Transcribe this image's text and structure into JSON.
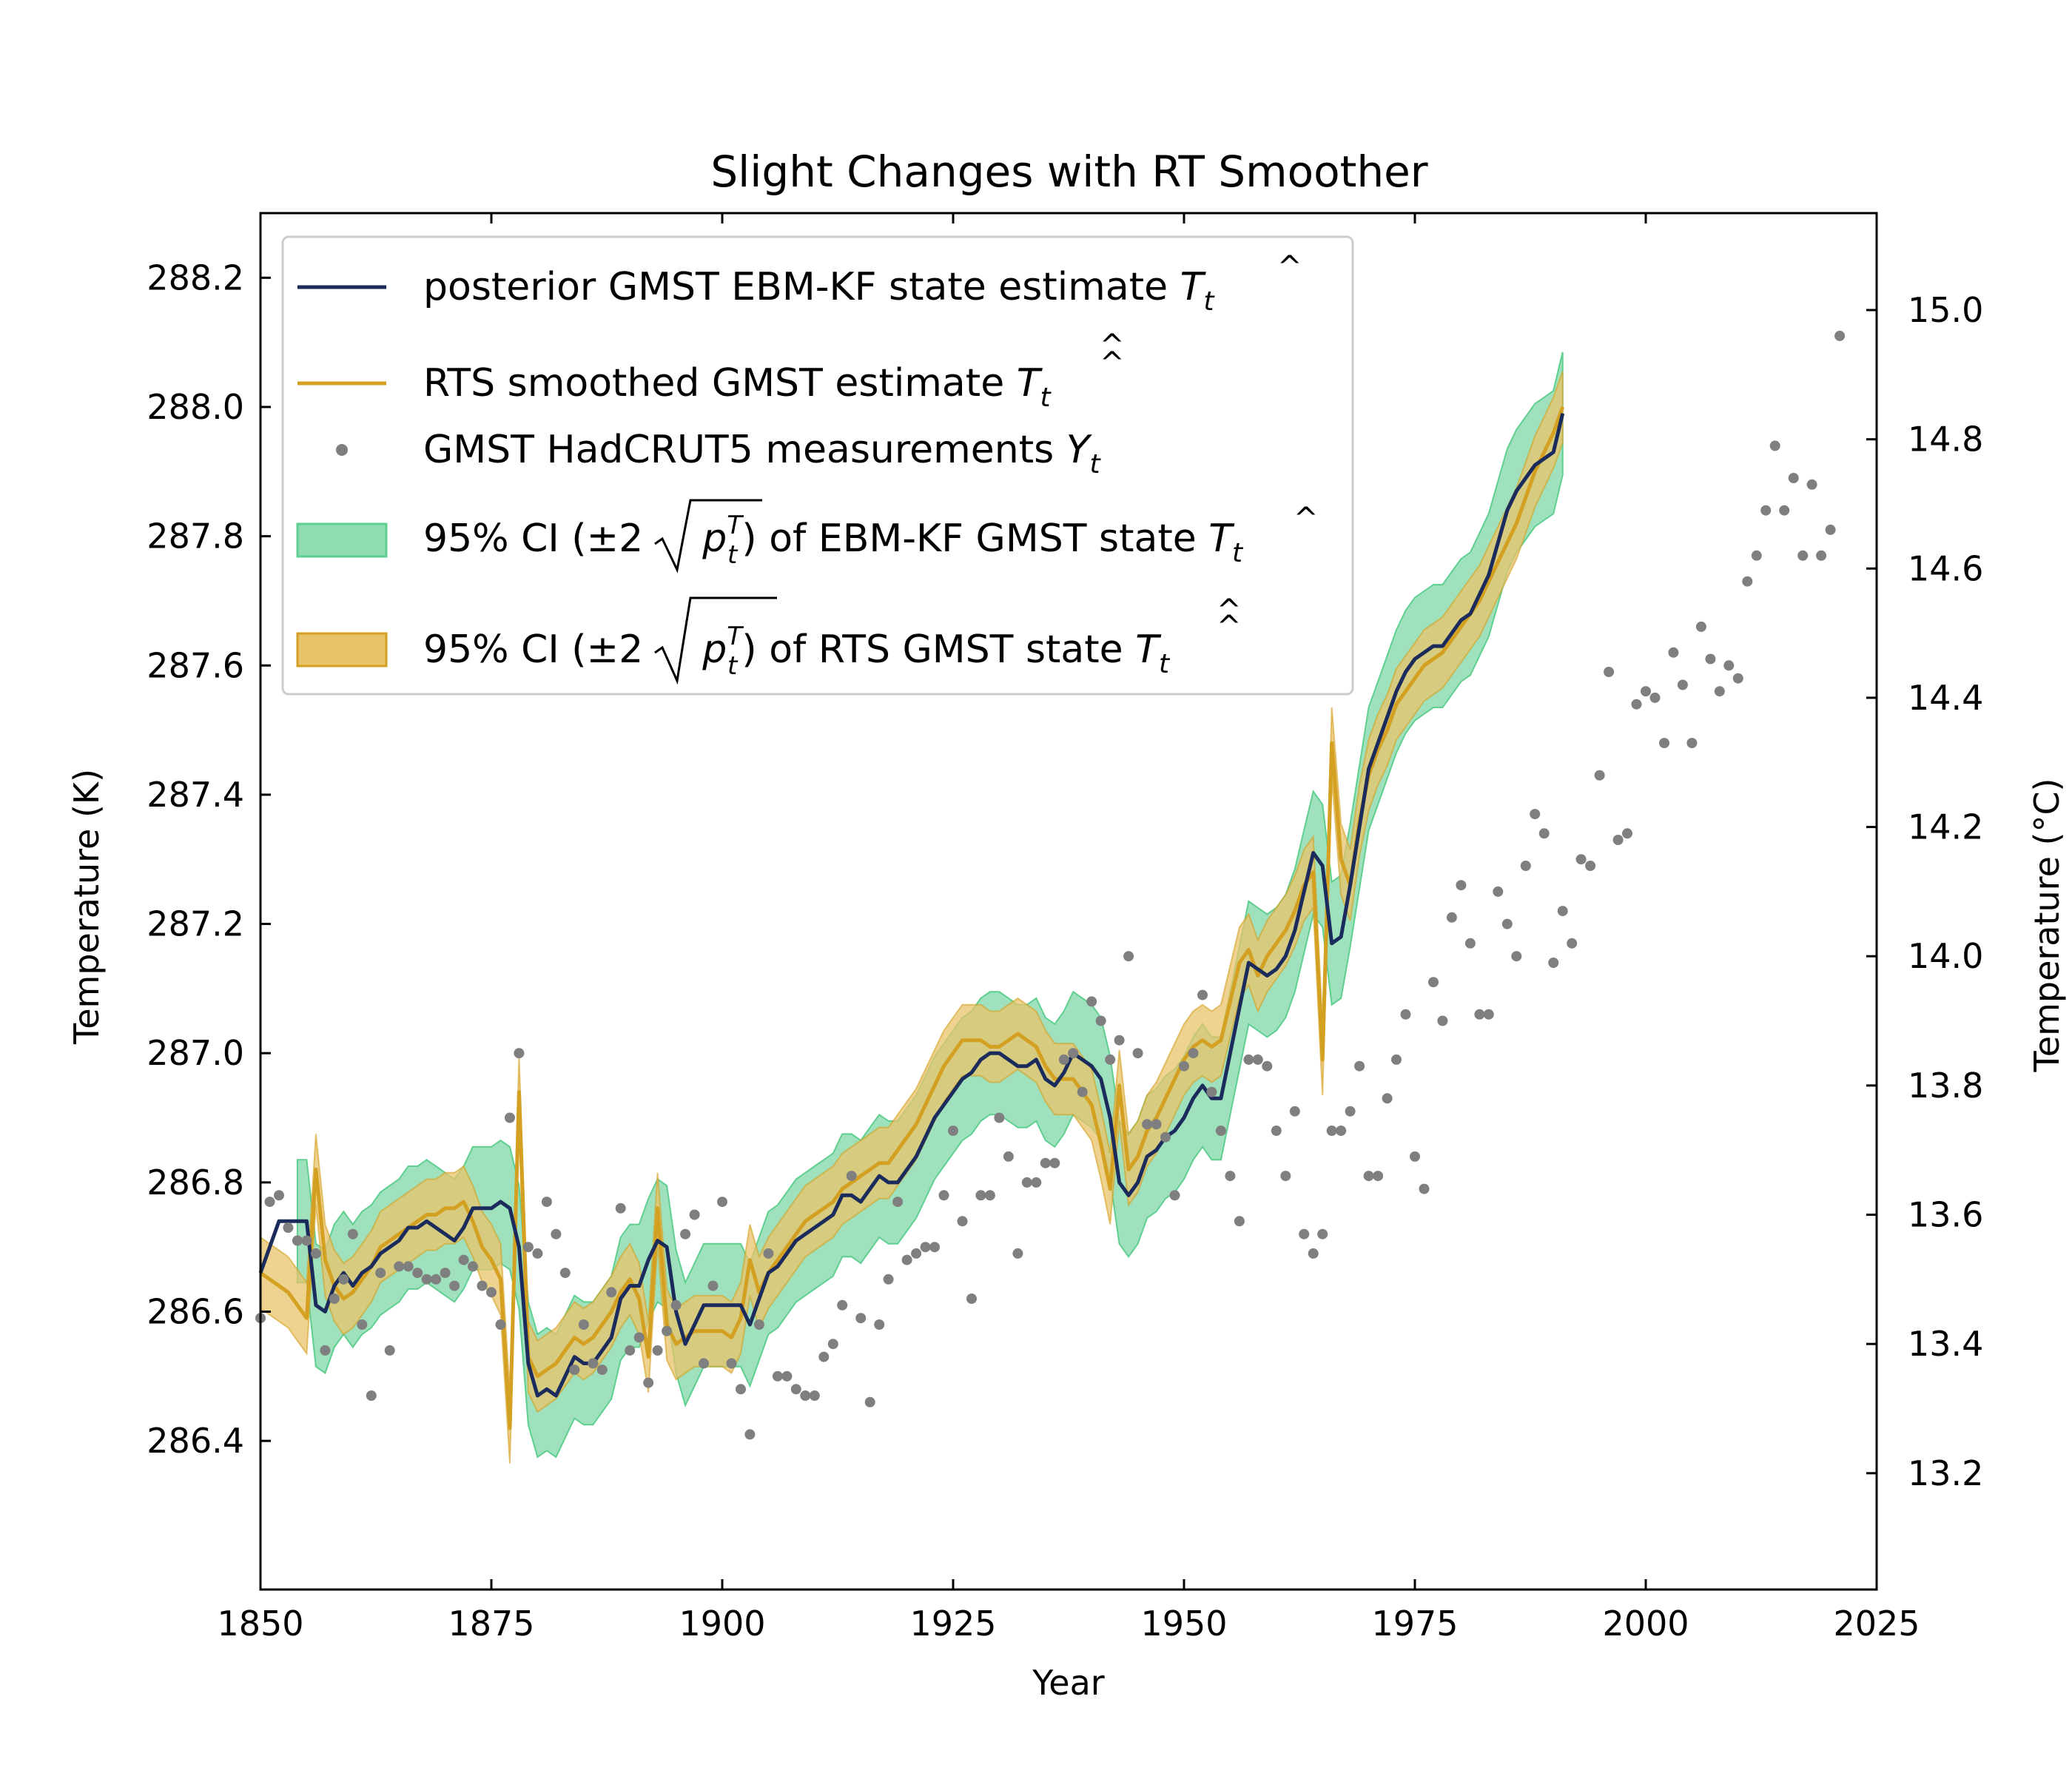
{
  "chart_data": {
    "type": "line",
    "title": "Slight Changes with RT Smoother",
    "xlabel": "Year",
    "ylabel_left": "Temperature (K)",
    "ylabel_right": "Temperature (°C)",
    "xlim": [
      1850,
      2025
    ],
    "ylim_left": [
      286.17,
      288.3
    ],
    "ylim_right": [
      13.02,
      15.15
    ],
    "x_ticks": [
      "1850",
      "1875",
      "1900",
      "1925",
      "1950",
      "1975",
      "2000",
      "2025"
    ],
    "y_ticks_left": [
      "286.4",
      "286.6",
      "286.8",
      "287.0",
      "287.2",
      "287.4",
      "287.6",
      "287.8",
      "288.0",
      "288.2"
    ],
    "y_ticks_right": [
      "13.2",
      "13.4",
      "13.6",
      "13.8",
      "14.0",
      "14.2",
      "14.4",
      "14.6",
      "14.8",
      "15.0"
    ],
    "legend_position": "upper-left",
    "legend": {
      "kf": {
        "pre": "posterior GMST EBM-KF state estimate ",
        "sym": "T",
        "sub": "t"
      },
      "rts": {
        "pre": "RTS smoothed GMST estimate ",
        "sym": "T",
        "sub": "t"
      },
      "meas": {
        "pre": "GMST HadCRUT5 measurements ",
        "sym": "Y",
        "sub": "t"
      },
      "ci_kf": {
        "pre": "95% CI (±2",
        "sym": "p",
        "mid": ") of EBM-KF GMST state ",
        "sym2": "T",
        "sub": "t",
        "sup": "T"
      },
      "ci_rts": {
        "pre": "95% CI (±2",
        "sym": "p",
        "mid": ") of RTS GMST state ",
        "sym2": "T",
        "sub": "t",
        "sup": "T"
      }
    },
    "colors": {
      "kf_line": "#1a2b5c",
      "rts_line": "#d4a021",
      "meas": "#7f7f7f",
      "ci_kf_fill": "#8edcb0",
      "ci_kf_edge": "#5fcf8f",
      "ci_rts_fill": "#e8c36a",
      "ci_rts_edge": "#d4a021"
    },
    "years_start": 1850,
    "measurements": [
      286.59,
      286.77,
      286.78,
      286.73,
      286.71,
      286.71,
      286.69,
      286.54,
      286.62,
      286.65,
      286.72,
      286.58,
      286.47,
      286.66,
      286.54,
      286.67,
      286.67,
      286.66,
      286.65,
      286.65,
      286.66,
      286.64,
      286.68,
      286.67,
      286.64,
      286.63,
      286.58,
      286.9,
      287.0,
      286.7,
      286.69,
      286.77,
      286.72,
      286.66,
      286.51,
      286.58,
      286.52,
      286.51,
      286.63,
      286.76,
      286.54,
      286.56,
      286.49,
      286.54,
      286.57,
      286.61,
      286.72,
      286.75,
      286.52,
      286.64,
      286.77,
      286.52,
      286.48,
      286.41,
      286.58,
      286.69,
      286.5,
      286.5,
      286.48,
      286.47,
      286.47,
      286.53,
      286.55,
      286.61,
      286.81,
      286.59,
      286.46,
      286.58,
      286.65,
      286.77,
      286.68,
      286.69,
      286.7,
      286.7,
      286.78,
      286.88,
      286.74,
      286.62,
      286.78,
      286.78,
      286.9,
      286.84,
      286.69,
      286.8,
      286.8,
      286.83,
      286.83,
      286.99,
      287.0,
      286.94,
      287.08,
      287.05,
      286.99,
      287.02,
      287.15,
      287.0,
      286.89,
      286.89,
      286.87,
      286.78,
      286.98,
      287.0,
      287.09,
      286.94,
      286.88,
      286.81,
      286.74,
      286.99,
      286.99,
      286.98,
      286.88,
      286.81,
      286.91,
      286.72,
      286.69,
      286.72,
      286.88,
      286.88,
      286.91,
      286.98,
      286.81,
      286.81,
      286.93,
      286.99,
      287.06,
      286.84,
      286.79,
      287.11,
      287.05,
      287.21,
      287.26,
      287.17,
      287.06,
      287.06,
      287.25,
      287.2,
      287.15,
      287.29,
      287.37,
      287.34,
      287.14,
      287.22,
      287.17,
      287.3,
      287.29,
      287.43,
      287.59,
      287.33,
      287.34,
      287.54,
      287.56,
      287.55,
      287.48,
      287.62,
      287.57,
      287.48,
      287.66,
      287.61,
      287.56,
      287.6,
      287.58,
      287.73,
      287.77,
      287.84,
      287.94,
      287.84,
      287.89,
      287.77,
      287.88,
      287.77,
      287.81,
      288.11
    ],
    "kf": [
      286.66,
      286.7,
      286.74,
      286.74,
      286.74,
      286.74,
      286.61,
      286.6,
      286.64,
      286.66,
      286.64,
      286.66,
      286.67,
      286.69,
      286.7,
      286.71,
      286.73,
      286.73,
      286.74,
      286.73,
      286.72,
      286.71,
      286.73,
      286.76,
      286.76,
      286.76,
      286.77,
      286.76,
      286.7,
      286.52,
      286.47,
      286.48,
      286.47,
      286.5,
      286.53,
      286.52,
      286.52,
      286.54,
      286.56,
      286.62,
      286.64,
      286.64,
      286.68,
      286.71,
      286.7,
      286.6,
      286.55,
      286.58,
      286.61,
      286.61,
      286.61,
      286.61,
      286.61,
      286.58,
      286.62,
      286.66,
      286.67,
      286.69,
      286.71,
      286.72,
      286.73,
      286.74,
      286.75,
      286.78,
      286.78,
      286.77,
      286.79,
      286.81,
      286.8,
      286.8,
      286.82,
      286.84,
      286.87,
      286.9,
      286.92,
      286.94,
      286.96,
      286.97,
      286.99,
      287.0,
      287.0,
      286.99,
      286.98,
      286.98,
      286.99,
      286.96,
      286.95,
      286.97,
      287.0,
      286.99,
      286.98,
      286.96,
      286.9,
      286.8,
      286.78,
      286.8,
      286.84,
      286.85,
      286.87,
      286.88,
      286.9,
      286.93,
      286.95,
      286.93,
      286.93,
      287.0,
      287.07,
      287.14,
      287.13,
      287.12,
      287.13,
      287.15,
      287.19,
      287.25,
      287.31,
      287.29,
      287.17,
      287.18,
      287.26,
      287.35,
      287.44,
      287.48,
      287.52,
      287.56,
      287.59,
      287.61,
      287.62,
      287.63,
      287.63,
      287.65,
      287.67,
      287.68,
      287.71,
      287.74,
      287.79,
      287.84,
      287.87,
      287.89,
      287.91,
      287.92,
      287.93,
      287.99
    ],
    "kf_halfwidth": 0.095,
    "kf_ci_start": 1854,
    "rts_start": 1850,
    "rts": [
      286.66,
      286.65,
      286.64,
      286.63,
      286.61,
      286.59,
      286.82,
      286.68,
      286.64,
      286.62,
      286.63,
      286.65,
      286.67,
      286.7,
      286.71,
      286.72,
      286.73,
      286.74,
      286.75,
      286.75,
      286.76,
      286.76,
      286.77,
      286.74,
      286.7,
      286.68,
      286.65,
      286.42,
      286.94,
      286.53,
      286.5,
      286.51,
      286.52,
      286.54,
      286.56,
      286.55,
      286.56,
      286.58,
      286.6,
      286.63,
      286.65,
      286.62,
      286.53,
      286.76,
      286.58,
      286.55,
      286.56,
      286.57,
      286.57,
      286.57,
      286.57,
      286.56,
      286.59,
      286.68,
      286.63,
      286.66,
      286.68,
      286.7,
      286.72,
      286.74,
      286.75,
      286.76,
      286.77,
      286.79,
      286.8,
      286.81,
      286.82,
      286.83,
      286.83,
      286.85,
      286.87,
      286.89,
      286.92,
      286.95,
      286.98,
      287.0,
      287.02,
      287.02,
      287.02,
      287.01,
      287.01,
      287.02,
      287.03,
      287.02,
      287.01,
      286.98,
      286.96,
      286.96,
      286.96,
      286.94,
      286.92,
      286.86,
      286.79,
      286.95,
      286.82,
      286.84,
      286.88,
      286.9,
      286.93,
      286.96,
      286.99,
      287.01,
      287.02,
      287.01,
      287.02,
      287.08,
      287.14,
      287.16,
      287.12,
      287.15,
      287.17,
      287.19,
      287.22,
      287.26,
      287.28,
      286.99,
      287.48,
      287.3,
      287.26,
      287.36,
      287.43,
      287.47,
      287.5,
      287.54,
      287.56,
      287.58,
      287.6,
      287.61,
      287.62,
      287.64,
      287.66,
      287.68,
      287.7,
      287.73,
      287.76,
      287.79,
      287.82,
      287.86,
      287.9,
      287.93,
      287.96,
      288.0
    ],
    "rts_halfwidth": 0.055
  }
}
